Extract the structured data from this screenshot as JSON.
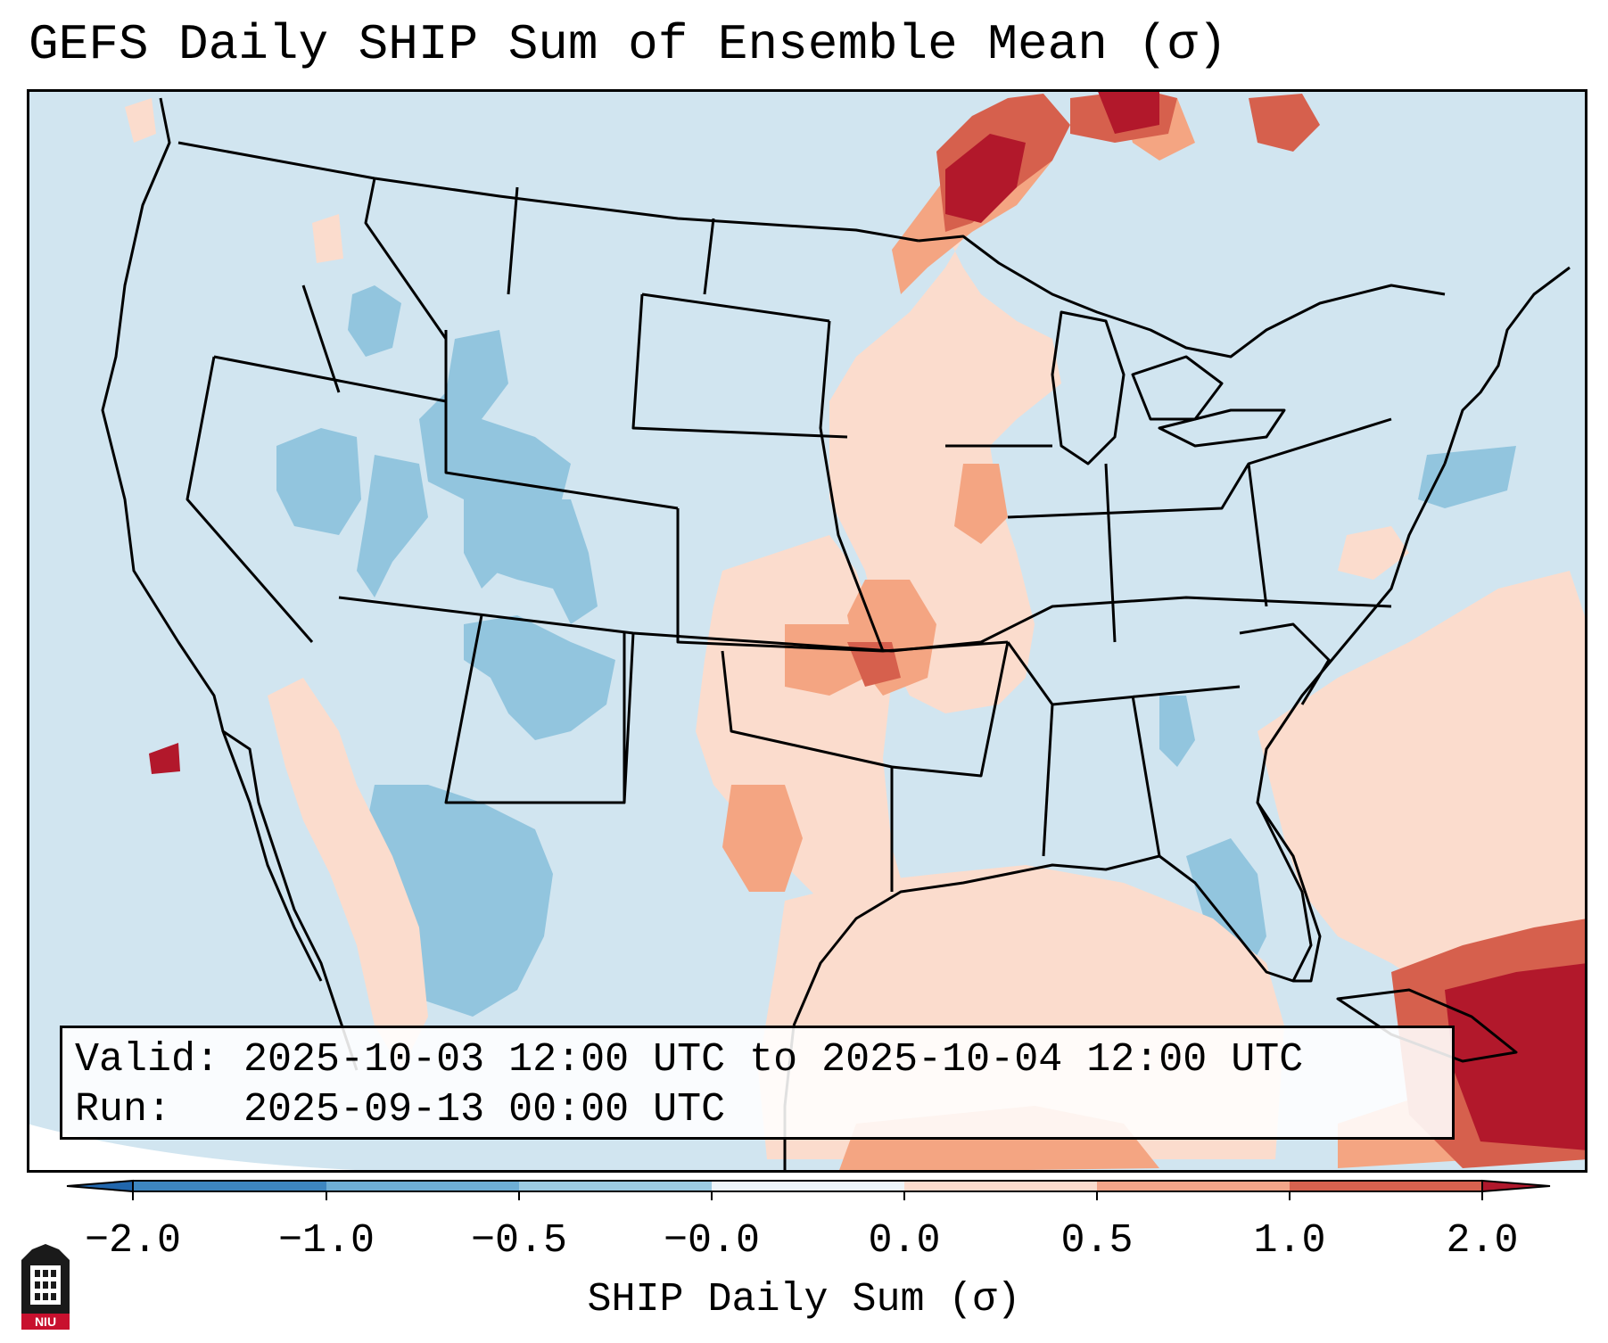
{
  "title": "GEFS Daily SHIP Sum of Ensemble Mean (σ)",
  "valid_label": "Valid:",
  "valid_value": "2025-10-03 12:00 UTC to 2025-10-04 12:00 UTC",
  "run_label": "Run:",
  "run_value": "2025-09-13 00:00 UTC",
  "colorbar": {
    "label": "SHIP Daily Sum (σ)",
    "ticks": [
      "−2.0",
      "−1.0",
      "−0.5",
      "−0.0",
      "0.0",
      "0.5",
      "1.0",
      "2.0"
    ],
    "colors": [
      "#3d86c0",
      "#6eaed5",
      "#9ccbe2",
      "#cfe4ef",
      "#fbdcce",
      "#f3a589",
      "#d7624f",
      "#b0182c"
    ]
  },
  "logo": {
    "text": "NIU"
  }
}
